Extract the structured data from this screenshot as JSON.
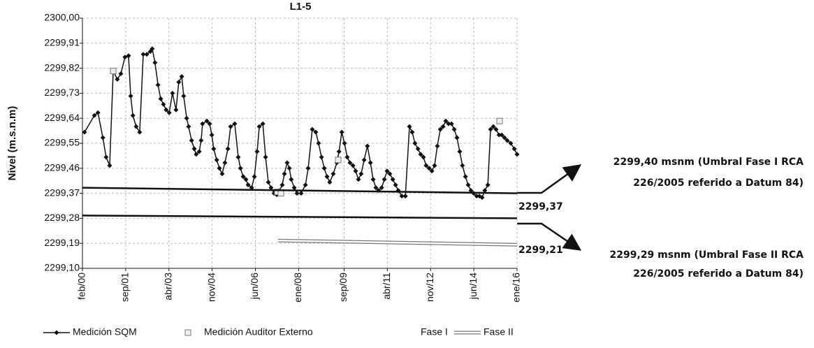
{
  "chart_data": {
    "type": "line",
    "title": "L1-5",
    "ylabel": "Nivel (m.s.n.m)",
    "xlim": [
      2000.083,
      2016.0
    ],
    "xticks": [
      {
        "value": 2000.083,
        "label": "feb/00"
      },
      {
        "value": 2001.667,
        "label": "sep/01"
      },
      {
        "value": 2003.25,
        "label": "abr/03"
      },
      {
        "value": 2004.833,
        "label": "nov/04"
      },
      {
        "value": 2006.417,
        "label": "jun/06"
      },
      {
        "value": 2008.0,
        "label": "ene/08"
      },
      {
        "value": 2009.667,
        "label": "sep/09"
      },
      {
        "value": 2011.25,
        "label": "abr/11"
      },
      {
        "value": 2012.833,
        "label": "nov/12"
      },
      {
        "value": 2014.417,
        "label": "jun/14"
      },
      {
        "value": 2016.0,
        "label": "ene/16"
      }
    ],
    "ylim": [
      2299.1,
      2300.0
    ],
    "yticks": [
      {
        "value": 2299.1,
        "label": "2299,10"
      },
      {
        "value": 2299.19,
        "label": "2299,19"
      },
      {
        "value": 2299.28,
        "label": "2299,28"
      },
      {
        "value": 2299.37,
        "label": "2299,37"
      },
      {
        "value": 2299.46,
        "label": "2299,46"
      },
      {
        "value": 2299.55,
        "label": "2299,55"
      },
      {
        "value": 2299.64,
        "label": "2299,64"
      },
      {
        "value": 2299.73,
        "label": "2299,73"
      },
      {
        "value": 2299.82,
        "label": "2299,82"
      },
      {
        "value": 2299.91,
        "label": "2299,91"
      },
      {
        "value": 2300.0,
        "label": "2300,00"
      }
    ],
    "grid": true,
    "series": [
      {
        "name": "Medición SQM",
        "color": "#111111",
        "marker": "diamond",
        "line": "solid",
        "x": [
          2000.16,
          2000.52,
          2000.65,
          2000.83,
          2000.95,
          2001.08,
          2001.21,
          2001.36,
          2001.49,
          2001.64,
          2001.77,
          2001.85,
          2001.93,
          2002.05,
          2002.18,
          2002.31,
          2002.44,
          2002.57,
          2002.64,
          2002.74,
          2002.85,
          2002.95,
          2003.05,
          2003.15,
          2003.26,
          2003.38,
          2003.51,
          2003.61,
          2003.72,
          2003.79,
          2003.9,
          2003.97,
          2004.08,
          2004.18,
          2004.25,
          2004.36,
          2004.43,
          2004.48,
          2004.64,
          2004.74,
          2004.82,
          2004.89,
          2005.0,
          2005.1,
          2005.2,
          2005.3,
          2005.41,
          2005.51,
          2005.66,
          2005.79,
          2005.87,
          2005.97,
          2006.07,
          2006.15,
          2006.28,
          2006.38,
          2006.48,
          2006.56,
          2006.69,
          2006.79,
          2006.89,
          2006.99,
          2007.1,
          2007.2,
          2007.3,
          2007.4,
          2007.48,
          2007.58,
          2007.66,
          2007.73,
          2007.84,
          2007.94,
          2008.09,
          2008.25,
          2008.35,
          2008.5,
          2008.63,
          2008.73,
          2008.84,
          2008.94,
          2009.04,
          2009.14,
          2009.27,
          2009.4,
          2009.48,
          2009.58,
          2009.68,
          2009.78,
          2009.88,
          2009.99,
          2010.09,
          2010.19,
          2010.29,
          2010.4,
          2010.52,
          2010.63,
          2010.73,
          2010.83,
          2010.93,
          2011.04,
          2011.14,
          2011.24,
          2011.34,
          2011.45,
          2011.55,
          2011.65,
          2011.78,
          2011.91,
          2012.06,
          2012.16,
          2012.26,
          2012.37,
          2012.47,
          2012.57,
          2012.67,
          2012.78,
          2012.88,
          2012.98,
          2013.08,
          2013.19,
          2013.29,
          2013.39,
          2013.49,
          2013.6,
          2013.7,
          2013.8,
          2013.9,
          2014.0,
          2014.11,
          2014.21,
          2014.31,
          2014.41,
          2014.52,
          2014.62,
          2014.72,
          2014.82,
          2014.93,
          2015.03,
          2015.13,
          2015.23,
          2015.34,
          2015.44,
          2015.54,
          2015.64,
          2015.77,
          2015.9,
          2016.0
        ],
        "values": [
          2299.59,
          2299.65,
          2299.66,
          2299.57,
          2299.5,
          2299.47,
          2299.81,
          2299.78,
          2299.8,
          2299.86,
          2299.865,
          2299.72,
          2299.65,
          2299.61,
          2299.59,
          2299.87,
          2299.87,
          2299.88,
          2299.89,
          2299.84,
          2299.76,
          2299.71,
          2299.69,
          2299.67,
          2299.66,
          2299.73,
          2299.67,
          2299.77,
          2299.79,
          2299.72,
          2299.64,
          2299.61,
          2299.56,
          2299.53,
          2299.51,
          2299.52,
          2299.56,
          2299.62,
          2299.63,
          2299.62,
          2299.58,
          2299.53,
          2299.49,
          2299.46,
          2299.44,
          2299.48,
          2299.53,
          2299.61,
          2299.62,
          2299.5,
          2299.46,
          2299.43,
          2299.42,
          2299.4,
          2299.39,
          2299.43,
          2299.52,
          2299.61,
          2299.62,
          2299.5,
          2299.41,
          2299.39,
          2299.37,
          2299.365,
          2299.38,
          2299.4,
          2299.44,
          2299.48,
          2299.46,
          2299.42,
          2299.39,
          2299.37,
          2299.37,
          2299.4,
          2299.46,
          2299.6,
          2299.59,
          2299.55,
          2299.5,
          2299.46,
          2299.43,
          2299.41,
          2299.44,
          2299.48,
          2299.52,
          2299.59,
          2299.55,
          2299.5,
          2299.48,
          2299.47,
          2299.45,
          2299.42,
          2299.44,
          2299.49,
          2299.54,
          2299.48,
          2299.42,
          2299.39,
          2299.38,
          2299.39,
          2299.42,
          2299.45,
          2299.44,
          2299.42,
          2299.4,
          2299.38,
          2299.36,
          2299.36,
          2299.61,
          2299.59,
          2299.55,
          2299.53,
          2299.51,
          2299.5,
          2299.47,
          2299.46,
          2299.45,
          2299.47,
          2299.54,
          2299.6,
          2299.61,
          2299.63,
          2299.62,
          2299.62,
          2299.6,
          2299.57,
          2299.52,
          2299.47,
          2299.43,
          2299.4,
          2299.38,
          2299.37,
          2299.36,
          2299.36,
          2299.355,
          2299.38,
          2299.4,
          2299.6,
          2299.61,
          2299.6,
          2299.58,
          2299.58,
          2299.57,
          2299.56,
          2299.55,
          2299.53,
          2299.51
        ]
      },
      {
        "name": "Medición Auditor Externo",
        "color": "#777777",
        "marker": "square",
        "line": "none",
        "x": [
          2001.21,
          2007.22,
          2007.35,
          2009.45,
          2015.36
        ],
        "values": [
          2299.81,
          2299.375,
          2299.37,
          2299.49,
          2299.63
        ]
      },
      {
        "name": "Fase I",
        "color": "#111111",
        "marker": "none",
        "line": "solid",
        "x": [
          2000.083,
          2016.0
        ],
        "values": [
          2299.39,
          2299.37
        ]
      },
      {
        "name": "Fase II",
        "color": "#777777",
        "marker": "none",
        "line": "double",
        "x": [
          2007.24,
          2016.0
        ],
        "values": [
          2299.2,
          2299.185
        ]
      },
      {
        "color": "#111111",
        "marker": "none",
        "line": "solid",
        "x": [
          2000.083,
          2016.0
        ],
        "values": [
          2299.29,
          2299.28
        ]
      }
    ],
    "annotations": [
      "2299,40 msnm (Umbral Fase I RCA",
      "226/2005 referido a Datum 84)",
      "2299,29 msnm (Umbral Fase II RCA",
      "226/2005 referido a Datum 84)",
      "2299,37",
      "2299,21"
    ]
  }
}
